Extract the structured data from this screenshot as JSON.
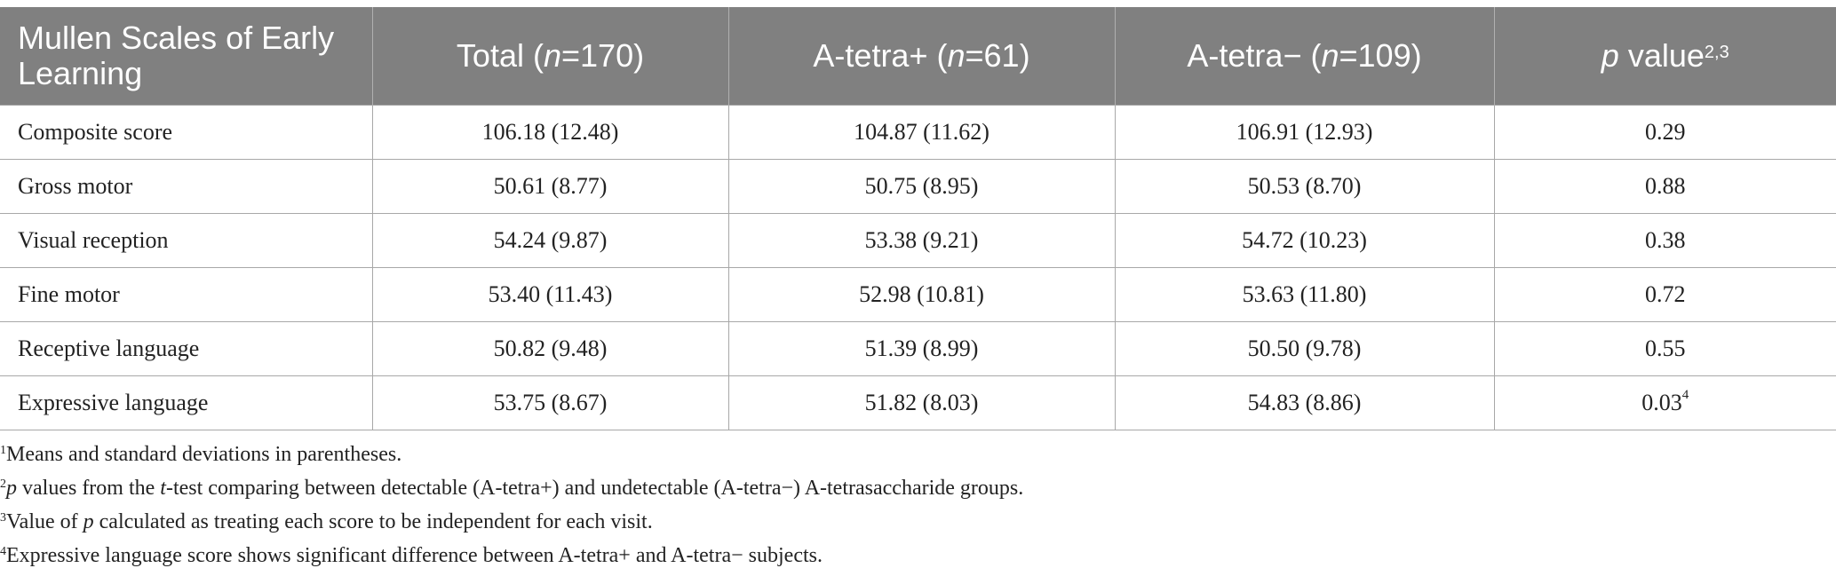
{
  "table": {
    "headers": {
      "col0": "Mullen Scales of Early Learning",
      "col1_pre": "Total (",
      "col1_n": "n",
      "col1_post": "=170)",
      "col2_pre": "A-tetra+ (",
      "col2_n": "n",
      "col2_post": "=61)",
      "col3_pre": "A-tetra− (",
      "col3_n": "n",
      "col3_post": "=109)",
      "col4_p": "p",
      "col4_post": " value",
      "col4_sup": "2,3"
    },
    "rows": [
      {
        "label": "Composite score",
        "total": "106.18 (12.48)",
        "atetra_pos": "104.87 (11.62)",
        "atetra_neg": "106.91 (12.93)",
        "p_value": "0.29",
        "p_sup": ""
      },
      {
        "label": "Gross motor",
        "total": "50.61 (8.77)",
        "atetra_pos": "50.75 (8.95)",
        "atetra_neg": "50.53 (8.70)",
        "p_value": "0.88",
        "p_sup": ""
      },
      {
        "label": "Visual reception",
        "total": "54.24 (9.87)",
        "atetra_pos": "53.38 (9.21)",
        "atetra_neg": "54.72 (10.23)",
        "p_value": "0.38",
        "p_sup": ""
      },
      {
        "label": "Fine motor",
        "total": "53.40 (11.43)",
        "atetra_pos": "52.98 (10.81)",
        "atetra_neg": "53.63 (11.80)",
        "p_value": "0.72",
        "p_sup": ""
      },
      {
        "label": "Receptive language",
        "total": "50.82 (9.48)",
        "atetra_pos": "51.39 (8.99)",
        "atetra_neg": "50.50 (9.78)",
        "p_value": "0.55",
        "p_sup": ""
      },
      {
        "label": "Expressive language",
        "total": "53.75 (8.67)",
        "atetra_pos": "51.82 (8.03)",
        "atetra_neg": "54.83 (8.86)",
        "p_value": "0.03",
        "p_sup": "4"
      }
    ]
  },
  "footnotes": {
    "n1_sup": "1",
    "n1_text": "Means and standard deviations in parentheses.",
    "n2_sup": "2",
    "n2_p": "p",
    "n2_mid": " values from the ",
    "n2_t": "t",
    "n2_rest": "-test comparing between detectable (A-tetra+) and undetectable (A-tetra−) A-tetrasaccharide groups.",
    "n3_sup": "3",
    "n3_pre": "Value of ",
    "n3_p": "p",
    "n3_rest": " calculated as treating each score to be independent for each visit.",
    "n4_sup": "4",
    "n4_text": "Expressive language score shows significant difference between A-tetra+ and A-tetra− subjects."
  }
}
